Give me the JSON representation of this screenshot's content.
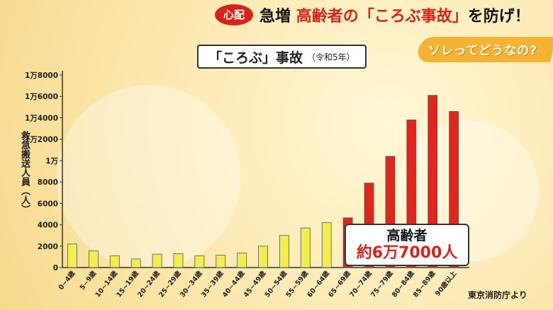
{
  "header": {
    "badge": "心配",
    "headline_part1": "急増",
    "headline_part2": "高齢者の「ころぶ事故」",
    "headline_part3": "を防げ！"
  },
  "corner_banner": "ソレってどうなの?",
  "chart_title": {
    "main": "「ころぶ」事故",
    "sub": "（令和5年）"
  },
  "callout": {
    "title": "高齢者",
    "value": "約6万7000人"
  },
  "source": "東京消防庁より",
  "colors": {
    "young": "#f2ee52",
    "elderly": "#e0261c",
    "accent": "#d9231a"
  },
  "chart_data": {
    "type": "bar",
    "ylabel": "救急搬送人員（人）",
    "ylim": [
      0,
      18000
    ],
    "yticks": [
      0,
      2000,
      4000,
      6000,
      8000,
      10000,
      12000,
      14000,
      16000,
      18000
    ],
    "ytick_labels": [
      "0",
      "2000",
      "4000",
      "6000",
      "8000",
      "1万",
      "1万2000",
      "1万4000",
      "1万6000",
      "1万8000"
    ],
    "categories": [
      "0~4歳",
      "5~9歳",
      "10~14歳",
      "15~19歳",
      "20~24歳",
      "25~29歳",
      "30~34歳",
      "35~39歳",
      "40~44歳",
      "45~49歳",
      "50~54歳",
      "55~59歳",
      "60~64歳",
      "65~69歳",
      "70~74歳",
      "75~79歳",
      "80~84歳",
      "85~89歳",
      "90歳以上"
    ],
    "values": [
      2200,
      1550,
      1100,
      800,
      1250,
      1300,
      1100,
      1150,
      1350,
      2000,
      3000,
      3700,
      4200,
      4650,
      7900,
      10400,
      13800,
      16100,
      14600
    ],
    "elderly_from_index": 13
  }
}
